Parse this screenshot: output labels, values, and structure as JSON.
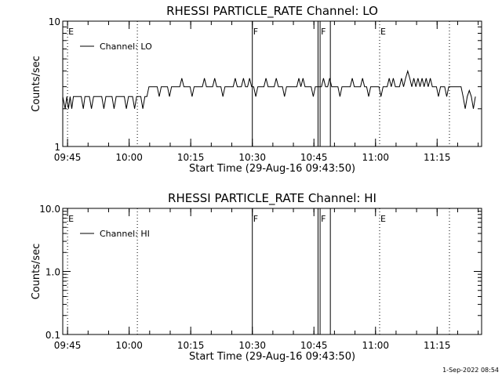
{
  "footer_stamp": "1-Sep-2022 08:54",
  "chart_data": [
    {
      "type": "line",
      "title": "RHESSI PARTICLE_RATE Channel: LO",
      "xlabel": "Start Time (29-Aug-16 09:43:50)",
      "ylabel": "Counts/sec",
      "y_scale": "log",
      "ylim": [
        1,
        10
      ],
      "y_ticks": [
        "1",
        "10"
      ],
      "xlim_minutes_after_0943:50": [
        0,
        102
      ],
      "x_ticks": [
        "09:45",
        "10:00",
        "10:15",
        "10:30",
        "10:45",
        "11:00",
        "11:15"
      ],
      "legend": "Channel: LO",
      "legend_position": "top-left",
      "grid": false,
      "markers": [
        {
          "label": "E",
          "time": "09:45",
          "style": "dotted"
        },
        {
          "label": "",
          "time": "10:02",
          "style": "dotted"
        },
        {
          "label": "F",
          "time": "10:30",
          "style": "solid"
        },
        {
          "label": "",
          "time": "10:46",
          "style": "solid"
        },
        {
          "label": "F",
          "time": "10:46.5",
          "style": "solid"
        },
        {
          "label": "",
          "time": "10:49",
          "style": "solid"
        },
        {
          "label": "E",
          "time": "11:01",
          "style": "dotted"
        },
        {
          "label": "",
          "time": "11:18",
          "style": "dotted"
        }
      ],
      "series": [
        {
          "name": "Channel: LO",
          "points": [
            [
              0.0,
              2.5
            ],
            [
              0.6,
              2.0
            ],
            [
              1.0,
              2.5
            ],
            [
              1.4,
              2.0
            ],
            [
              1.8,
              2.5
            ],
            [
              2.2,
              2.0
            ],
            [
              2.6,
              2.5
            ],
            [
              4.5,
              2.5
            ],
            [
              5.0,
              2.0
            ],
            [
              5.4,
              2.5
            ],
            [
              6.5,
              2.5
            ],
            [
              7.0,
              2.0
            ],
            [
              7.5,
              2.5
            ],
            [
              9.5,
              2.5
            ],
            [
              10.0,
              2.0
            ],
            [
              10.5,
              2.5
            ],
            [
              12.0,
              2.5
            ],
            [
              12.5,
              2.0
            ],
            [
              13.0,
              2.5
            ],
            [
              15.0,
              2.5
            ],
            [
              15.5,
              2.0
            ],
            [
              16.0,
              2.5
            ],
            [
              17.0,
              2.5
            ],
            [
              17.5,
              2.0
            ],
            [
              18.0,
              2.5
            ],
            [
              19.0,
              2.5
            ],
            [
              19.5,
              2.0
            ],
            [
              20.0,
              2.5
            ],
            [
              20.5,
              2.5
            ],
            [
              21.0,
              3.0
            ],
            [
              23.0,
              3.0
            ],
            [
              23.5,
              2.5
            ],
            [
              24.0,
              3.0
            ],
            [
              25.5,
              3.0
            ],
            [
              26.0,
              2.5
            ],
            [
              26.5,
              3.0
            ],
            [
              28.5,
              3.0
            ],
            [
              29.0,
              3.5
            ],
            [
              29.5,
              3.0
            ],
            [
              31.0,
              3.0
            ],
            [
              31.5,
              2.5
            ],
            [
              32.0,
              3.0
            ],
            [
              34.0,
              3.0
            ],
            [
              34.5,
              3.5
            ],
            [
              35.0,
              3.0
            ],
            [
              36.5,
              3.0
            ],
            [
              37.0,
              3.5
            ],
            [
              37.5,
              3.0
            ],
            [
              38.5,
              3.0
            ],
            [
              39.0,
              2.5
            ],
            [
              39.5,
              3.0
            ],
            [
              41.5,
              3.0
            ],
            [
              42.0,
              3.5
            ],
            [
              42.5,
              3.0
            ],
            [
              43.5,
              3.0
            ],
            [
              44.0,
              3.5
            ],
            [
              44.5,
              3.0
            ],
            [
              45.0,
              3.0
            ],
            [
              45.5,
              3.5
            ],
            [
              46.0,
              3.0
            ],
            [
              46.5,
              3.0
            ],
            [
              47.0,
              2.5
            ],
            [
              47.5,
              3.0
            ],
            [
              49.0,
              3.0
            ],
            [
              49.5,
              3.5
            ],
            [
              50.0,
              3.0
            ],
            [
              51.5,
              3.0
            ],
            [
              52.0,
              3.5
            ],
            [
              52.5,
              3.0
            ],
            [
              53.5,
              3.0
            ],
            [
              54.0,
              2.5
            ],
            [
              54.5,
              3.0
            ],
            [
              57.0,
              3.0
            ],
            [
              57.5,
              3.5
            ],
            [
              58.0,
              3.0
            ],
            [
              58.5,
              3.5
            ],
            [
              59.0,
              3.0
            ],
            [
              60.5,
              3.0
            ],
            [
              61.0,
              2.5
            ],
            [
              61.5,
              3.0
            ],
            [
              63.0,
              3.0
            ],
            [
              63.5,
              3.5
            ],
            [
              64.0,
              3.0
            ],
            [
              64.5,
              3.0
            ],
            [
              65.0,
              3.5
            ],
            [
              65.5,
              3.0
            ],
            [
              67.0,
              3.0
            ],
            [
              67.5,
              2.5
            ],
            [
              68.0,
              3.0
            ],
            [
              70.0,
              3.0
            ],
            [
              70.5,
              3.5
            ],
            [
              71.0,
              3.0
            ],
            [
              72.5,
              3.0
            ],
            [
              73.0,
              3.5
            ],
            [
              73.5,
              3.0
            ],
            [
              74.0,
              3.0
            ],
            [
              74.5,
              2.5
            ],
            [
              75.0,
              3.0
            ],
            [
              77.0,
              3.0
            ],
            [
              77.5,
              2.5
            ],
            [
              78.0,
              3.0
            ],
            [
              79.0,
              3.0
            ],
            [
              79.5,
              3.5
            ],
            [
              80.0,
              3.0
            ],
            [
              80.5,
              3.5
            ],
            [
              81.0,
              3.0
            ],
            [
              82.0,
              3.0
            ],
            [
              82.5,
              3.5
            ],
            [
              83.0,
              3.0
            ],
            [
              83.5,
              3.5
            ],
            [
              84.0,
              4.0
            ],
            [
              84.5,
              3.5
            ],
            [
              85.0,
              3.0
            ],
            [
              85.5,
              3.5
            ],
            [
              86.0,
              3.0
            ],
            [
              86.5,
              3.5
            ],
            [
              87.0,
              3.0
            ],
            [
              87.5,
              3.5
            ],
            [
              88.0,
              3.0
            ],
            [
              88.5,
              3.5
            ],
            [
              89.0,
              3.0
            ],
            [
              89.5,
              3.5
            ],
            [
              90.0,
              3.0
            ],
            [
              91.0,
              3.0
            ],
            [
              91.5,
              2.5
            ],
            [
              92.0,
              3.0
            ],
            [
              93.0,
              3.0
            ],
            [
              93.5,
              2.5
            ],
            [
              94.0,
              3.0
            ],
            [
              97.0,
              3.0
            ],
            [
              97.5,
              2.5
            ],
            [
              98.0,
              2.0
            ],
            [
              98.5,
              2.5
            ],
            [
              99.0,
              2.8
            ],
            [
              99.5,
              2.5
            ],
            [
              100.0,
              2.0
            ],
            [
              100.5,
              2.5
            ]
          ]
        }
      ]
    },
    {
      "type": "line",
      "title": "RHESSI PARTICLE_RATE Channel: HI",
      "xlabel": "Start Time (29-Aug-16 09:43:50)",
      "ylabel": "Counts/sec",
      "y_scale": "log",
      "ylim": [
        0.1,
        10
      ],
      "y_ticks": [
        "0.1",
        "1.0",
        "10.0"
      ],
      "xlim_minutes_after_0943:50": [
        0,
        102
      ],
      "x_ticks": [
        "09:45",
        "10:00",
        "10:15",
        "10:30",
        "10:45",
        "11:00",
        "11:15"
      ],
      "legend": "Channel: HI",
      "legend_position": "top-left",
      "grid": false,
      "markers": [
        {
          "label": "E",
          "time": "09:45",
          "style": "dotted"
        },
        {
          "label": "",
          "time": "10:02",
          "style": "dotted"
        },
        {
          "label": "F",
          "time": "10:30",
          "style": "solid"
        },
        {
          "label": "",
          "time": "10:46",
          "style": "solid"
        },
        {
          "label": "F",
          "time": "10:46.5",
          "style": "solid"
        },
        {
          "label": "",
          "time": "10:49",
          "style": "solid"
        },
        {
          "label": "E",
          "time": "11:01",
          "style": "dotted"
        },
        {
          "label": "",
          "time": "11:18",
          "style": "dotted"
        }
      ],
      "series": [
        {
          "name": "Channel: HI",
          "points": []
        }
      ]
    }
  ]
}
